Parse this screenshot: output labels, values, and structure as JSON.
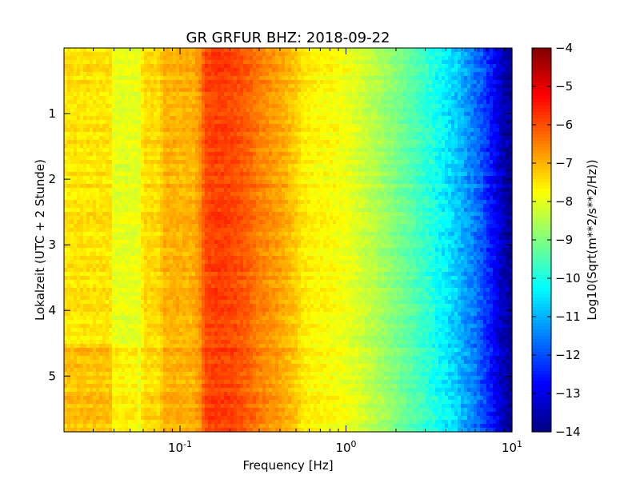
{
  "chart_data": {
    "type": "heatmap",
    "title": "GR GRFUR BHZ: 2018-09-22",
    "xlabel": "Frequency [Hz]",
    "ylabel": "Lokalzeit (UTC + 2 Stunde)",
    "x_scale": "log",
    "xlim": [
      0.02,
      10
    ],
    "ylim": [
      0,
      5.85
    ],
    "y_inverted": true,
    "x_ticks": [
      {
        "value": 0.1,
        "base": "10",
        "exp": "-1"
      },
      {
        "value": 1,
        "base": "10",
        "exp": "0"
      },
      {
        "value": 10,
        "base": "10",
        "exp": "1"
      }
    ],
    "y_ticks": [
      1,
      2,
      3,
      4,
      5
    ],
    "colorbar": {
      "label": "Log10(Sqrt(m**2/s**2/Hz))",
      "min": -14,
      "max": -4,
      "ticks": [
        -4,
        -5,
        -6,
        -7,
        -8,
        -9,
        -10,
        -11,
        -12,
        -13,
        -14
      ],
      "colormap": "jet"
    },
    "profile": {
      "freq_hz": [
        0.02,
        0.038,
        0.04,
        0.058,
        0.06,
        0.075,
        0.08,
        0.12,
        0.135,
        0.14,
        0.16,
        0.2,
        0.25,
        0.3,
        0.4,
        0.5,
        0.55,
        0.65,
        0.8,
        1.0,
        1.2,
        1.5,
        2.0,
        3.0,
        4.0,
        5.0,
        6.0,
        7.0,
        8.0,
        9.0,
        10.0
      ],
      "log_amp": [
        -7.5,
        -7.5,
        -8.0,
        -8.0,
        -7.4,
        -7.4,
        -7.0,
        -7.0,
        -6.6,
        -6.0,
        -5.85,
        -5.9,
        -6.15,
        -6.5,
        -6.85,
        -7.25,
        -7.55,
        -7.7,
        -7.75,
        -7.9,
        -8.15,
        -8.5,
        -9.0,
        -9.75,
        -10.4,
        -11.0,
        -11.6,
        -12.2,
        -12.9,
        -13.5,
        -13.8
      ]
    },
    "time_variation": [
      {
        "t_start": 4.5,
        "t_end": 5.85,
        "f_max": 0.055,
        "delta": 0.35
      }
    ]
  }
}
